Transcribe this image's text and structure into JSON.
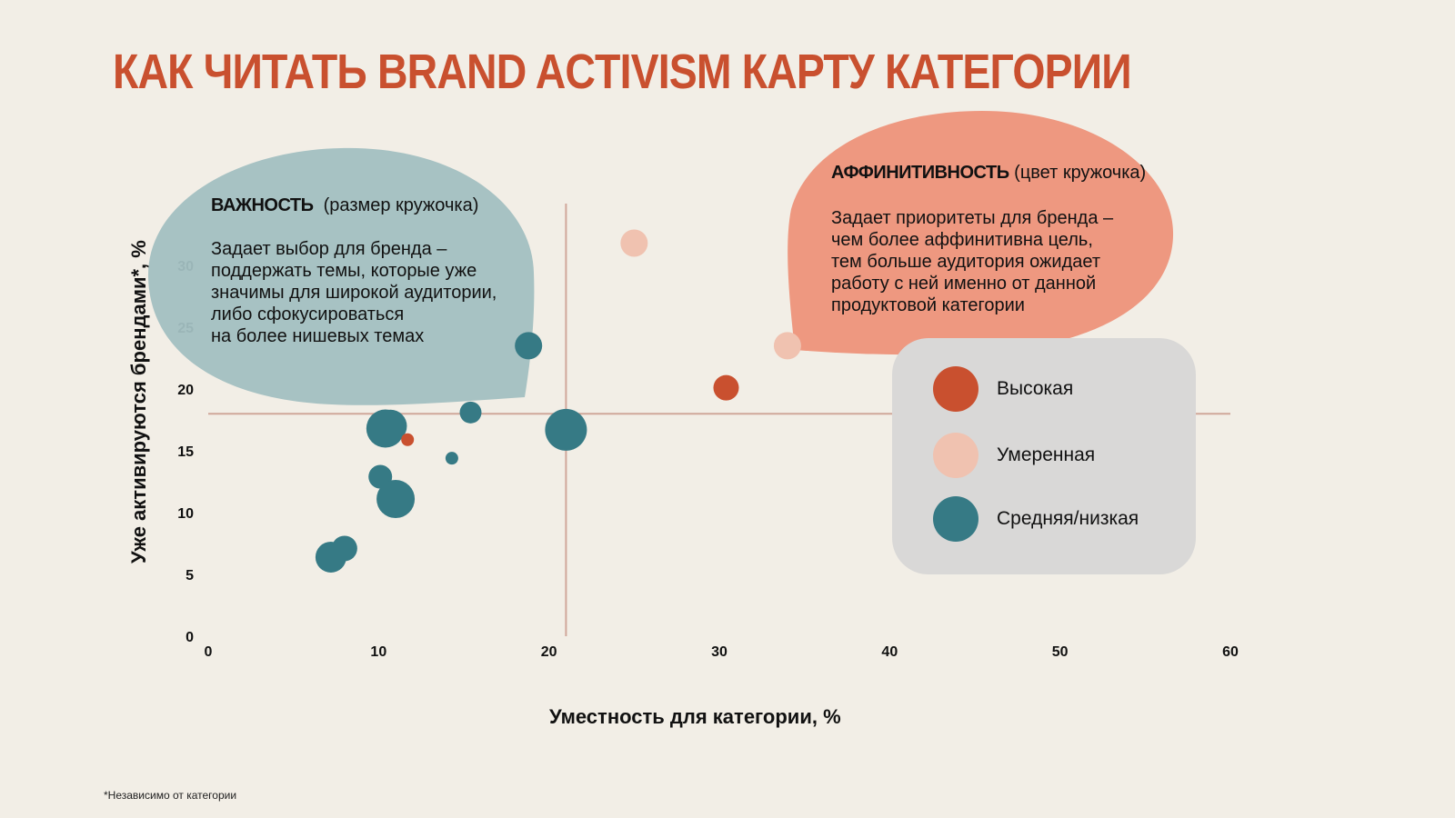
{
  "title": "КАК ЧИТАТЬ BRAND ACTIVISM КАРТУ КАТЕГОРИИ",
  "callout_importance": {
    "heading": "ВАЖНОСТЬ",
    "heading_note": "(размер кружочка)",
    "lines": [
      "Задает выбор для бренда –",
      "поддержать темы, которые уже",
      "значимы для широкой аудитории,",
      "либо сфокусироваться",
      "на более нишевых темах"
    ]
  },
  "callout_affinity": {
    "heading": "АФФИНИТИВНОСТЬ",
    "heading_note": "(цвет кружочка)",
    "lines": [
      "Задает приоритеты для бренда –",
      "чем более аффинитивна цель,",
      "тем больше аудитория ожидает",
      "работу с ней именно от данной",
      "продуктовой категории"
    ]
  },
  "legend": [
    {
      "label": "Высокая",
      "color": "#C9502F"
    },
    {
      "label": "Умеренная",
      "color": "#F0C2B0"
    },
    {
      "label": "Средняя/низкая",
      "color": "#367A85"
    }
  ],
  "footnote": "*Независимо от категории",
  "chart_data": {
    "type": "scatter",
    "xlabel": "Уместность для категории, %",
    "ylabel": "Уже активируются брендами*, %",
    "xlim": [
      0,
      60
    ],
    "ylim": [
      0,
      35
    ],
    "xticks": [
      "0",
      "10",
      "20",
      "30",
      "40",
      "50",
      "60"
    ],
    "yticks": [
      "0",
      "5",
      "10",
      "15",
      "20",
      "25",
      "30"
    ],
    "reference_lines": {
      "x": 21,
      "y": 18
    },
    "colors": {
      "high": "#C9502F",
      "moderate": "#F0C2B0",
      "low": "#367A85"
    },
    "points": [
      {
        "x": 25.0,
        "y": 31.8,
        "size": 15,
        "affinity": "moderate"
      },
      {
        "x": 34.0,
        "y": 23.5,
        "size": 15,
        "affinity": "moderate"
      },
      {
        "x": 30.4,
        "y": 20.1,
        "size": 14,
        "affinity": "high"
      },
      {
        "x": 18.8,
        "y": 23.5,
        "size": 15,
        "affinity": "low"
      },
      {
        "x": 15.4,
        "y": 18.1,
        "size": 12,
        "affinity": "low"
      },
      {
        "x": 21.0,
        "y": 16.7,
        "size": 23,
        "affinity": "low"
      },
      {
        "x": 10.7,
        "y": 17.0,
        "size": 18,
        "affinity": "low"
      },
      {
        "x": 10.4,
        "y": 16.8,
        "size": 21,
        "affinity": "low"
      },
      {
        "x": 11.7,
        "y": 15.9,
        "size": 7,
        "affinity": "high"
      },
      {
        "x": 14.3,
        "y": 14.4,
        "size": 7,
        "affinity": "low"
      },
      {
        "x": 10.1,
        "y": 12.9,
        "size": 13,
        "affinity": "low"
      },
      {
        "x": 11.0,
        "y": 11.1,
        "size": 21,
        "affinity": "low"
      },
      {
        "x": 8.0,
        "y": 7.1,
        "size": 14,
        "affinity": "low"
      },
      {
        "x": 7.2,
        "y": 6.4,
        "size": 17,
        "affinity": "low"
      }
    ]
  }
}
